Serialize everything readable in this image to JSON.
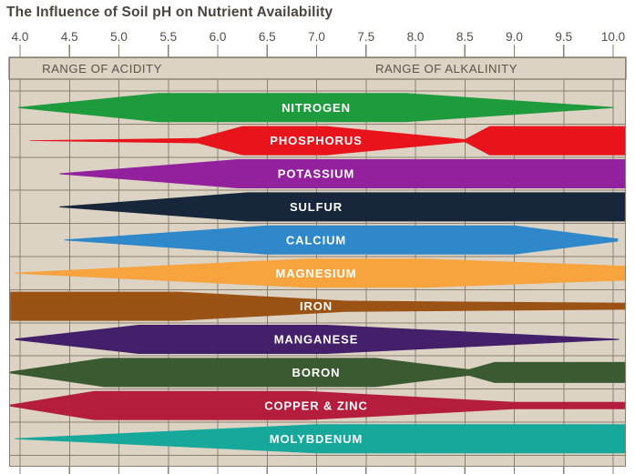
{
  "chart_data": {
    "type": "area",
    "title": "The Influence of Soil pH on Nutrient Availability",
    "x_axis": {
      "unit": "pH",
      "min": 4.0,
      "max": 10.0,
      "tick_labels": [
        "4.0",
        "4.5",
        "5.0",
        "5.5",
        "6.0",
        "6.5",
        "7.0",
        "7.5",
        "8.0",
        "8.5",
        "9.0",
        "9.5",
        "10.0"
      ]
    },
    "zones": {
      "left": "RANGE OF ACIDITY",
      "right": "RANGE OF ALKALINITY"
    },
    "encoding": "band thickness = relative nutrient availability (fraction 0-1) at each soil pH",
    "series": [
      {
        "name": "NITROGEN",
        "color": "#1E9C3D",
        "availability_profile": [
          [
            3.98,
            0.03
          ],
          [
            5.4,
            1
          ],
          [
            7.9,
            1
          ],
          [
            10.0,
            0.04
          ]
        ]
      },
      {
        "name": "PHOSPHORUS",
        "color": "#E8131B",
        "availability_profile": [
          [
            4.1,
            0.02
          ],
          [
            5.8,
            0.18
          ],
          [
            6.25,
            1
          ],
          [
            7.1,
            1
          ],
          [
            8.5,
            0.1
          ],
          [
            8.75,
            1
          ],
          [
            10.13,
            1
          ]
        ]
      },
      {
        "name": "POTASSIUM",
        "color": "#93219D",
        "availability_profile": [
          [
            4.4,
            0.03
          ],
          [
            6.2,
            1
          ],
          [
            10.13,
            1
          ]
        ]
      },
      {
        "name": "SULFUR",
        "color": "#17263A",
        "availability_profile": [
          [
            4.4,
            0.03
          ],
          [
            6.3,
            1
          ],
          [
            10.13,
            1
          ]
        ]
      },
      {
        "name": "CALCIUM",
        "color": "#2E88C9",
        "availability_profile": [
          [
            4.45,
            0.03
          ],
          [
            6.5,
            1
          ],
          [
            9.0,
            1
          ],
          [
            10.05,
            0.1
          ]
        ]
      },
      {
        "name": "MAGNESIUM",
        "color": "#F7A43F",
        "availability_profile": [
          [
            3.95,
            0.04
          ],
          [
            6.9,
            1
          ],
          [
            8.1,
            1
          ],
          [
            10.13,
            0.5
          ]
        ]
      },
      {
        "name": "IRON",
        "color": "#9A5314",
        "availability_profile": [
          [
            3.9,
            1
          ],
          [
            5.6,
            1
          ],
          [
            7.3,
            0.38
          ],
          [
            10.13,
            0.24
          ]
        ]
      },
      {
        "name": "MANGANESE",
        "color": "#44206B",
        "availability_profile": [
          [
            3.95,
            0.05
          ],
          [
            5.2,
            1
          ],
          [
            7.1,
            1
          ],
          [
            10.06,
            0.03
          ]
        ]
      },
      {
        "name": "BORON",
        "color": "#3A5A31",
        "availability_profile": [
          [
            3.9,
            0.06
          ],
          [
            4.85,
            1
          ],
          [
            7.6,
            1
          ],
          [
            8.54,
            0.22
          ],
          [
            8.8,
            0.72
          ],
          [
            10.13,
            0.72
          ]
        ]
      },
      {
        "name": "COPPER & ZINC",
        "color": "#B41D3C",
        "availability_profile": [
          [
            3.9,
            0.06
          ],
          [
            4.75,
            1
          ],
          [
            6.9,
            1
          ],
          [
            9.0,
            0.25
          ],
          [
            10.13,
            0.25
          ]
        ]
      },
      {
        "name": "MOLYBDENUM",
        "color": "#17A89C",
        "availability_profile": [
          [
            3.95,
            0.03
          ],
          [
            7.0,
            1
          ],
          [
            10.13,
            1
          ]
        ]
      }
    ],
    "colors": {
      "page_background": "#FFFFFF",
      "plot_background": "#DCD3C4",
      "grid": "#8A8072",
      "title_text": "#4A443C",
      "tick_text": "#524E48",
      "zone_text": "#5A544A",
      "band_label_text": "#FFFFFF"
    }
  }
}
